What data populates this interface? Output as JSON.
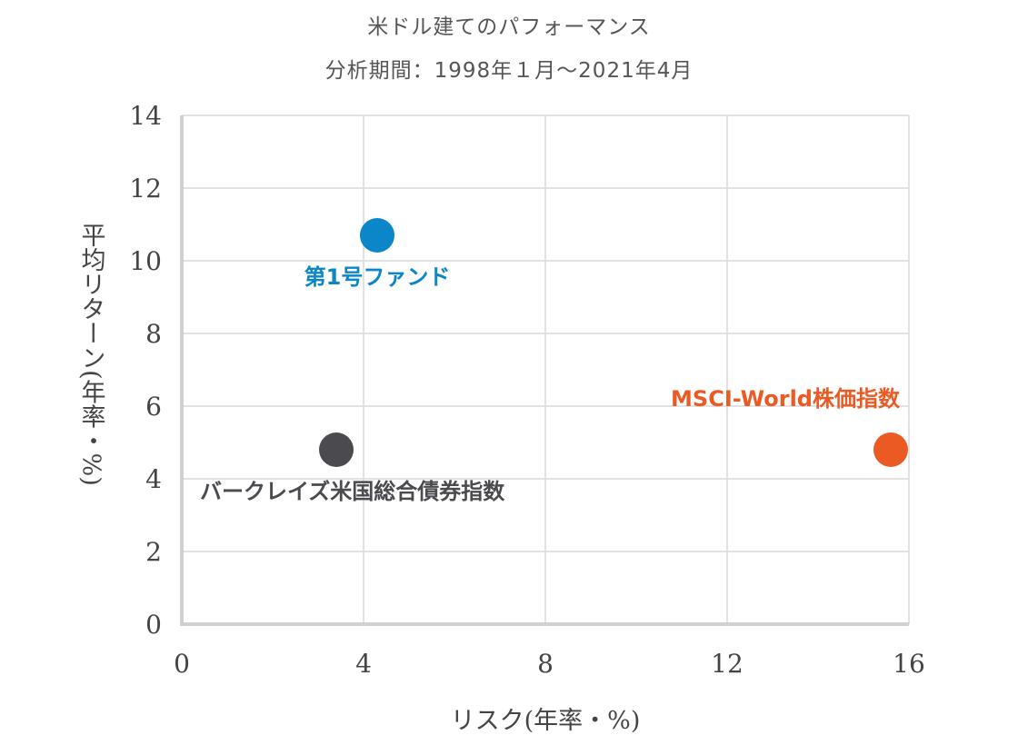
{
  "chart_data": {
    "type": "scatter",
    "title": "米ドル建てのパフォーマンス",
    "subtitle": "分析期間：1998年１月～2021年4月",
    "xlabel": "リスク(年率・%)",
    "ylabel": "平均リターン(年率・%)",
    "xlim": [
      0,
      16
    ],
    "ylim": [
      0,
      14
    ],
    "x_ticks": [
      0,
      4,
      8,
      12,
      16
    ],
    "y_ticks": [
      0,
      2,
      4,
      6,
      8,
      10,
      12,
      14
    ],
    "grid": true,
    "points": [
      {
        "name": "第1号ファンド",
        "x": 4.3,
        "y": 10.7,
        "color": "#0a86c9",
        "label_pos": "below"
      },
      {
        "name": "バークレイズ米国総合債券指数",
        "x": 3.4,
        "y": 4.8,
        "color": "#4a4a4f",
        "label_pos": "below"
      },
      {
        "name": "MSCI-World株価指数",
        "x": 15.6,
        "y": 4.8,
        "color": "#ec5a24",
        "label_pos": "above"
      }
    ]
  }
}
